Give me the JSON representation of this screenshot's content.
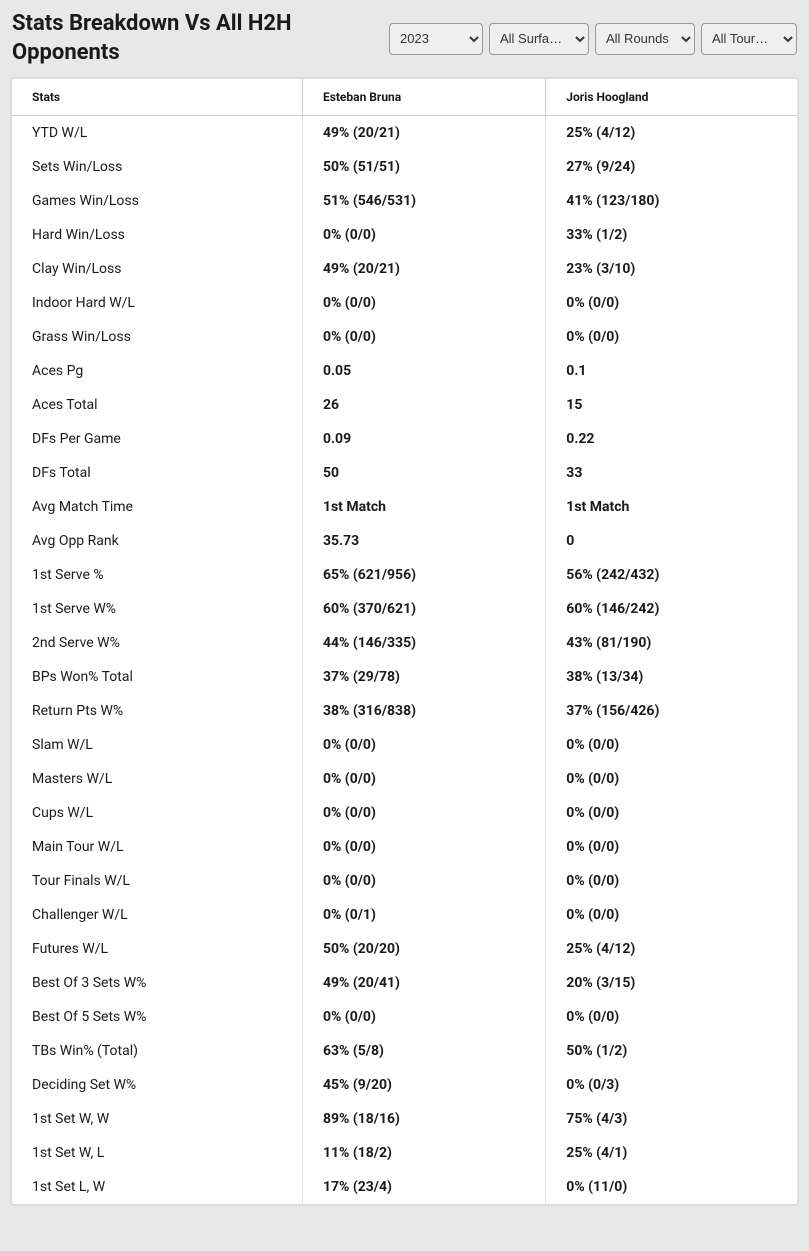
{
  "title": "Stats Breakdown Vs All H2H Opponents",
  "filters": {
    "year": {
      "value": "2023",
      "options": [
        "2023"
      ]
    },
    "surface": {
      "value": "All Surfa…",
      "options": [
        "All Surfa…"
      ]
    },
    "rounds": {
      "value": "All Rounds",
      "options": [
        "All Rounds"
      ]
    },
    "tourn": {
      "value": "All Tour…",
      "options": [
        "All Tour…"
      ]
    }
  },
  "table": {
    "columns": [
      "Stats",
      "Esteban Bruna",
      "Joris Hoogland"
    ],
    "rows": [
      [
        "YTD W/L",
        "49% (20/21)",
        "25% (4/12)"
      ],
      [
        "Sets Win/Loss",
        "50% (51/51)",
        "27% (9/24)"
      ],
      [
        "Games Win/Loss",
        "51% (546/531)",
        "41% (123/180)"
      ],
      [
        "Hard Win/Loss",
        "0% (0/0)",
        "33% (1/2)"
      ],
      [
        "Clay Win/Loss",
        "49% (20/21)",
        "23% (3/10)"
      ],
      [
        "Indoor Hard W/L",
        "0% (0/0)",
        "0% (0/0)"
      ],
      [
        "Grass Win/Loss",
        "0% (0/0)",
        "0% (0/0)"
      ],
      [
        "Aces Pg",
        "0.05",
        "0.1"
      ],
      [
        "Aces Total",
        "26",
        "15"
      ],
      [
        "DFs Per Game",
        "0.09",
        "0.22"
      ],
      [
        "DFs Total",
        "50",
        "33"
      ],
      [
        "Avg Match Time",
        "1st Match",
        "1st Match"
      ],
      [
        "Avg Opp Rank",
        "35.73",
        "0"
      ],
      [
        "1st Serve %",
        "65% (621/956)",
        "56% (242/432)"
      ],
      [
        "1st Serve W%",
        "60% (370/621)",
        "60% (146/242)"
      ],
      [
        "2nd Serve W%",
        "44% (146/335)",
        "43% (81/190)"
      ],
      [
        "BPs Won% Total",
        "37% (29/78)",
        "38% (13/34)"
      ],
      [
        "Return Pts W%",
        "38% (316/838)",
        "37% (156/426)"
      ],
      [
        "Slam W/L",
        "0% (0/0)",
        "0% (0/0)"
      ],
      [
        "Masters W/L",
        "0% (0/0)",
        "0% (0/0)"
      ],
      [
        "Cups W/L",
        "0% (0/0)",
        "0% (0/0)"
      ],
      [
        "Main Tour W/L",
        "0% (0/0)",
        "0% (0/0)"
      ],
      [
        "Tour Finals W/L",
        "0% (0/0)",
        "0% (0/0)"
      ],
      [
        "Challenger W/L",
        "0% (0/1)",
        "0% (0/0)"
      ],
      [
        "Futures W/L",
        "50% (20/20)",
        "25% (4/12)"
      ],
      [
        "Best Of 3 Sets W%",
        "49% (20/41)",
        "20% (3/15)"
      ],
      [
        "Best Of 5 Sets W%",
        "0% (0/0)",
        "0% (0/0)"
      ],
      [
        "TBs Win% (Total)",
        "63% (5/8)",
        "50% (1/2)"
      ],
      [
        "Deciding Set W%",
        "45% (9/20)",
        "0% (0/3)"
      ],
      [
        "1st Set W, W",
        "89% (18/16)",
        "75% (4/3)"
      ],
      [
        "1st Set W, L",
        "11% (18/2)",
        "25% (4/1)"
      ],
      [
        "1st Set L, W",
        "17% (23/4)",
        "0% (11/0)"
      ]
    ]
  },
  "styling": {
    "body_bg": "#e8e8e8",
    "table_bg": "#ffffff",
    "table_border": "#dcdcdc",
    "header_border": "#cccccc",
    "cell_border": "#e0e0e0",
    "text_color": "#1a1a1a",
    "title_fontsize": 22,
    "header_fontsize": 12,
    "cell_fontsize": 14,
    "col_widths_pct": [
      37,
      31,
      32
    ]
  }
}
